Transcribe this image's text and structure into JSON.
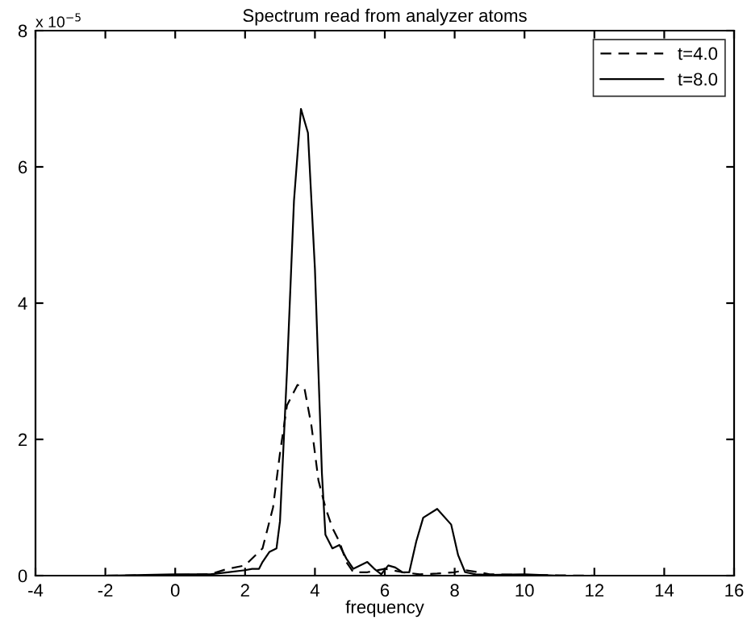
{
  "chart_data": {
    "type": "line",
    "title": "Spectrum read from analyzer atoms",
    "xlabel": "frequency",
    "annotations": [
      "x 10$^{−5}$"
    ],
    "xlim": [
      -4,
      16
    ],
    "xticks": [
      -4,
      -2,
      0,
      2,
      4,
      6,
      8,
      10,
      12,
      14,
      16
    ],
    "ylim": [
      0,
      8
    ],
    "yticks": [
      0,
      2,
      4,
      6,
      8
    ],
    "grid": false,
    "legend": "top right",
    "marker": "none",
    "series": [
      {
        "name": "t=4.0",
        "color": "#000000",
        "line_style": "dashed",
        "x": [
          -4,
          -2,
          0,
          1,
          1.5,
          2,
          2.5,
          2.8,
          3.0,
          3.2,
          3.5,
          3.7,
          3.9,
          4.1,
          4.3,
          4.5,
          4.7,
          4.9,
          5.1,
          5.5,
          6,
          6.5,
          7,
          7.5,
          8,
          8.3,
          8.7,
          9,
          10,
          12,
          16
        ],
        "values": [
          0,
          0,
          0.01,
          0.02,
          0.1,
          0.15,
          0.4,
          1.0,
          1.8,
          2.5,
          2.8,
          2.75,
          2.2,
          1.4,
          1.0,
          0.7,
          0.5,
          0.2,
          0.05,
          0.05,
          0.1,
          0.05,
          0.02,
          0.03,
          0.05,
          0.08,
          0.05,
          0.02,
          0.01,
          0,
          0
        ]
      },
      {
        "name": "t=8.0",
        "color": "#000000",
        "line_style": "solid",
        "x": [
          -4,
          -2,
          0,
          1,
          1.5,
          2,
          2.2,
          2.4,
          2.5,
          2.7,
          2.9,
          3.0,
          3.2,
          3.4,
          3.6,
          3.8,
          4.0,
          4.2,
          4.3,
          4.5,
          4.7,
          4.9,
          5.1,
          5.3,
          5.5,
          5.7,
          5.9,
          6.1,
          6.3,
          6.5,
          6.7,
          6.9,
          7.1,
          7.5,
          7.9,
          8.1,
          8.3,
          8.6,
          9,
          10,
          11,
          16
        ],
        "values": [
          0,
          0,
          0.02,
          0.02,
          0.05,
          0.08,
          0.1,
          0.1,
          0.2,
          0.35,
          0.4,
          0.8,
          3.0,
          5.5,
          6.85,
          6.5,
          4.5,
          1.5,
          0.6,
          0.4,
          0.45,
          0.25,
          0.1,
          0.15,
          0.2,
          0.1,
          0.02,
          0.15,
          0.12,
          0.05,
          0.05,
          0.5,
          0.85,
          0.98,
          0.75,
          0.3,
          0.05,
          0.02,
          0.01,
          0.02,
          0,
          0
        ]
      }
    ]
  }
}
